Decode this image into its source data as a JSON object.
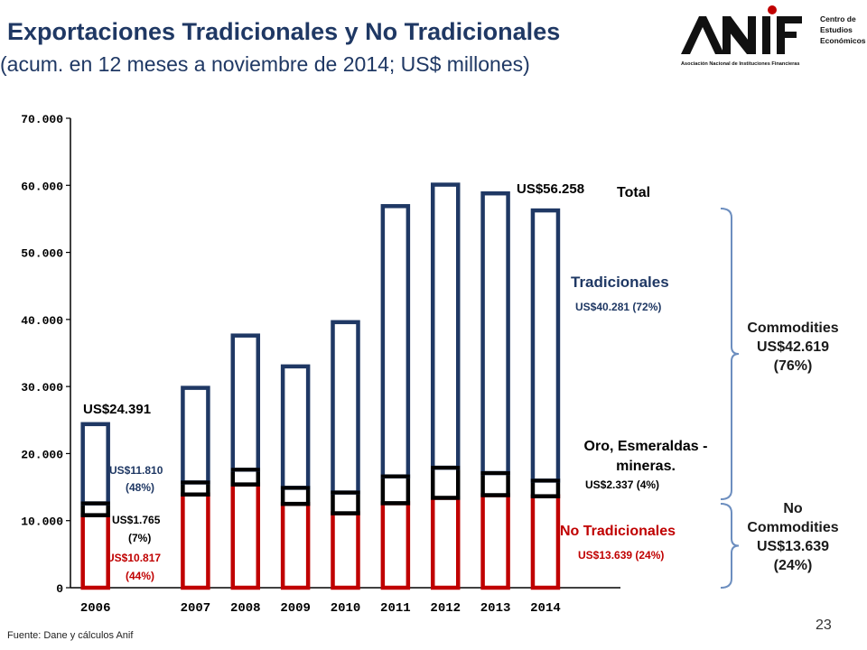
{
  "header": {
    "title": "Exportaciones Tradicionales y No Tradicionales",
    "subtitle": "(acum. en 12 meses a noviembre de 2014; US$ millones)"
  },
  "logo": {
    "name": "ANIF",
    "tagline": "Asociación Nacional de Instituciones Financieras",
    "unit": [
      "Centro de",
      "Estudios",
      "Económicos"
    ],
    "accent_color": "#c00000"
  },
  "chart_data": {
    "type": "bar",
    "stacked": true,
    "categories": [
      "2006",
      "2007",
      "2008",
      "2009",
      "2010",
      "2011",
      "2012",
      "2013",
      "2014"
    ],
    "series": [
      {
        "name": "No Tradicionales",
        "color": "#c00000",
        "values": [
          10817,
          13900,
          15400,
          12500,
          11100,
          12600,
          13400,
          13800,
          13639
        ]
      },
      {
        "name": "Oro, Esmeraldas - mineras.",
        "color": "#000000",
        "values": [
          1765,
          1800,
          2200,
          2400,
          3100,
          4000,
          4500,
          3300,
          2337
        ]
      },
      {
        "name": "Tradicionales",
        "color": "#1f3864",
        "values": [
          11810,
          14100,
          20000,
          18100,
          25400,
          40300,
          42200,
          41700,
          40281
        ]
      }
    ],
    "yticks": [
      "0",
      "10.000",
      "20.000",
      "30.000",
      "40.000",
      "50.000",
      "60.000",
      "70.000"
    ],
    "ylim": [
      0,
      70000
    ],
    "grid": false,
    "annotations": {
      "total_2006": "US$24.391",
      "total_2014": "US$56.258",
      "trad_2006": "US$11.810",
      "trad_2006_pct": "(48%)",
      "oro_2006": "US$1.765",
      "oro_2006_pct": "(7%)",
      "notrad_2006": "US$10.817",
      "notrad_2006_pct": "(44%)",
      "total_label": "Total",
      "trad_label": "Tradicionales",
      "trad_2014": "US$40.281 (72%)",
      "oro_label": "Oro, Esmeraldas - mineras.",
      "oro_2014": "US$2.337 (4%)",
      "notrad_label": "No Tradicionales",
      "notrad_2014": "US$13.639 (24%)",
      "commodities": [
        "Commodities",
        "US$42.619",
        "(76%)"
      ],
      "no_commodities": [
        "No",
        "Commodities",
        "US$13.639",
        "(24%)"
      ]
    }
  },
  "footer": {
    "source": "Fuente: Dane y cálculos Anif",
    "page_number": "23"
  }
}
